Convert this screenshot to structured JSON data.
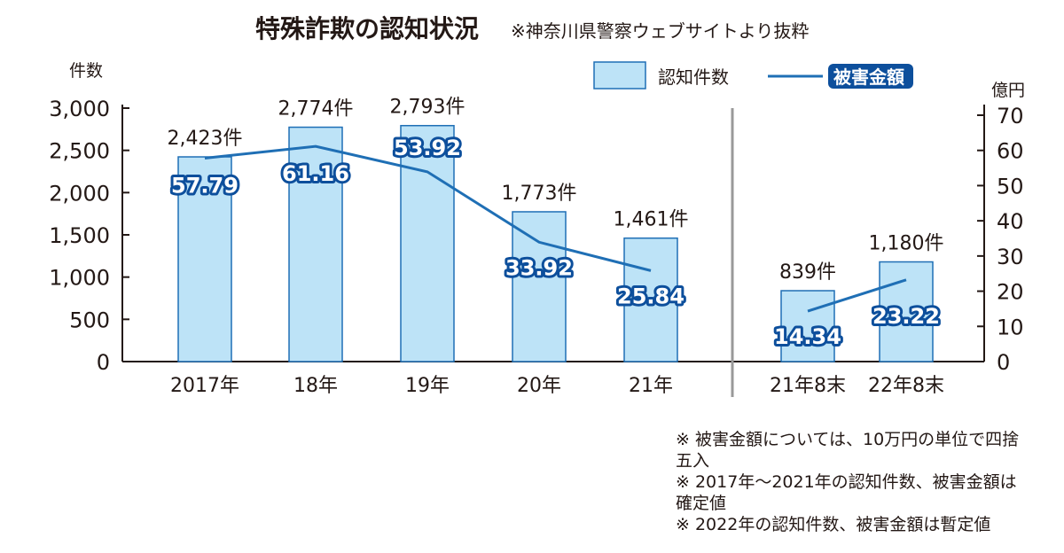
{
  "title": "特殊詐欺の認知状況",
  "subtitle": "※神奈川県警察ウェブサイトより抜粋",
  "left_unit": "件数",
  "right_unit": "億円",
  "legend": {
    "bar": "認知件数",
    "line": "被害金額"
  },
  "colors": {
    "bar_fill": "#bde3f7",
    "bar_stroke": "#1f6fb5",
    "line": "#1f6fb5",
    "label_bg": "#0d4f9c",
    "axis": "#231815",
    "separator": "#999999"
  },
  "notes": [
    "※ 被害金額については、10万円の単位で四捨五入",
    "※ 2017年〜2021年の認知件数、被害金額は確定値",
    "※ 2022年の認知件数、被害金額は暫定値"
  ],
  "chart_data": {
    "type": "bar+line",
    "title": "特殊詐欺の認知状況",
    "categories": [
      "2017年",
      "18年",
      "19年",
      "20年",
      "21年",
      "21年8末",
      "22年8末"
    ],
    "series": [
      {
        "name": "認知件数",
        "type": "bar",
        "axis": "left",
        "values": [
          2423,
          2774,
          2793,
          1773,
          1461,
          839,
          1180
        ],
        "labels": [
          "2,423件",
          "2,774件",
          "2,793件",
          "1,773件",
          "1,461件",
          "839件",
          "1,180件"
        ]
      },
      {
        "name": "被害金額",
        "type": "line",
        "axis": "right",
        "values": [
          57.79,
          61.16,
          53.92,
          33.92,
          25.84,
          14.34,
          23.22
        ],
        "labels": [
          "57.79",
          "61.16",
          "53.92",
          "33.92",
          "25.84",
          "14.34",
          "23.22"
        ],
        "segments": [
          [
            0,
            4
          ],
          [
            5,
            6
          ]
        ]
      }
    ],
    "left_axis": {
      "label": "件数",
      "range": [
        0,
        3000
      ],
      "ticks": [
        "0",
        "500",
        "1,000",
        "1,500",
        "2,000",
        "2,500",
        "3,000"
      ]
    },
    "right_axis": {
      "label": "億円",
      "range": [
        0,
        70
      ],
      "ticks": [
        "0",
        "10",
        "20",
        "30",
        "40",
        "50",
        "60",
        "70"
      ]
    },
    "legend_position": "top-right",
    "grid": false
  }
}
